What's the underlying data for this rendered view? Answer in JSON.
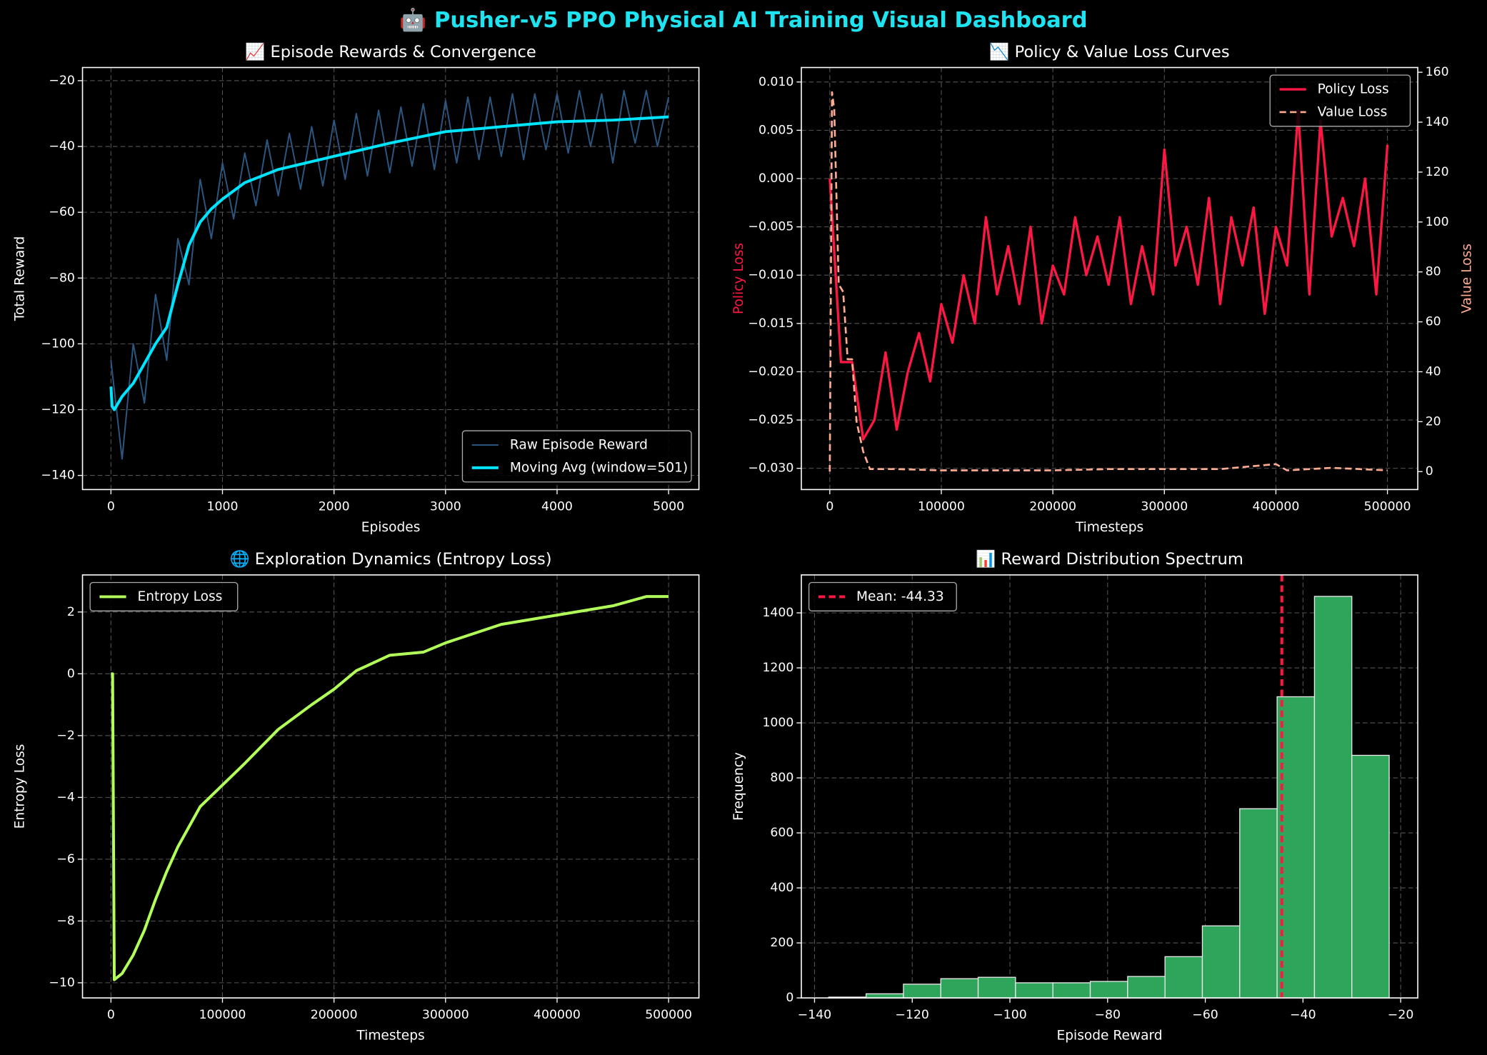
{
  "title": "🤖 Pusher-v5 PPO Physical AI Training Visual Dashboard",
  "chart_data": [
    {
      "type": "line",
      "title": "📈 Episode Rewards & Convergence",
      "xlabel": "Episodes",
      "ylabel": "Total Reward",
      "xlim": [
        -255,
        5272
      ],
      "xticks": [
        0,
        1000,
        2000,
        3000,
        4000,
        5000
      ],
      "ylim": [
        -144.3,
        -16
      ],
      "yticks": [
        {
          "value": -140,
          "label": "−140"
        },
        {
          "value": -120,
          "label": "−120"
        },
        {
          "value": -100,
          "label": "−100"
        },
        {
          "value": -80,
          "label": "−80"
        },
        {
          "value": -60,
          "label": "−60"
        },
        {
          "value": -40,
          "label": "−40"
        },
        {
          "value": -20,
          "label": "−20"
        }
      ],
      "grid": true,
      "legend": "lower right",
      "series": [
        {
          "name": "Raw Episode Reward",
          "color": "#2b5680",
          "linewidth": 1.5,
          "x": [
            0,
            100,
            200,
            300,
            400,
            500,
            600,
            700,
            800,
            900,
            1000,
            1100,
            1200,
            1300,
            1400,
            1500,
            1600,
            1700,
            1800,
            1900,
            2000,
            2100,
            2200,
            2300,
            2400,
            2500,
            2600,
            2700,
            2800,
            2900,
            3000,
            3100,
            3200,
            3300,
            3400,
            3500,
            3600,
            3700,
            3800,
            3900,
            4000,
            4100,
            4200,
            4300,
            4400,
            4500,
            4600,
            4700,
            4800,
            4900,
            5000
          ],
          "values": [
            -105,
            -135,
            -100,
            -118,
            -85,
            -105,
            -68,
            -82,
            -50,
            -68,
            -45,
            -62,
            -42,
            -58,
            -38,
            -55,
            -36,
            -53,
            -34,
            -52,
            -32,
            -50,
            -30,
            -49,
            -29,
            -48,
            -28,
            -46,
            -27,
            -47,
            -26,
            -45,
            -25,
            -44,
            -25,
            -43,
            -24,
            -44,
            -24,
            -41,
            -24,
            -42,
            -23,
            -40,
            -24,
            -45,
            -23,
            -39,
            -23,
            -40,
            -25
          ]
        },
        {
          "name": "Moving Avg (window=501)",
          "color": "#00e5ff",
          "linewidth": 3,
          "x": [
            0,
            10,
            30,
            100,
            200,
            300,
            400,
            500,
            600,
            700,
            800,
            900,
            1000,
            1200,
            1500,
            2000,
            2500,
            3000,
            3500,
            4000,
            4500,
            5000
          ],
          "values": [
            -113,
            -119,
            -120,
            -116,
            -112,
            -106,
            -100,
            -95,
            -82,
            -70,
            -63,
            -59,
            -56,
            -51,
            -47,
            -43,
            -39,
            -35.5,
            -34,
            -32.5,
            -32,
            -31
          ]
        }
      ]
    },
    {
      "type": "line",
      "title": "📉 Policy & Value Loss Curves",
      "xlabel": "Timesteps",
      "ylabel": "Policy Loss",
      "y2label": "Value Loss",
      "ylabel_color": "#ff1744",
      "y2label_color": "#ffab91",
      "xlim": [
        -25500,
        527200
      ],
      "xticks": [
        0,
        100000,
        200000,
        300000,
        400000,
        500000
      ],
      "ylim": [
        -0.0322,
        0.0115
      ],
      "yticks": [
        {
          "value": -0.03,
          "label": "−0.030"
        },
        {
          "value": -0.025,
          "label": "−0.025"
        },
        {
          "value": -0.02,
          "label": "−0.020"
        },
        {
          "value": -0.015,
          "label": "−0.015"
        },
        {
          "value": -0.01,
          "label": "−0.010"
        },
        {
          "value": -0.005,
          "label": "−0.005"
        },
        {
          "value": 0,
          "label": "0.000"
        },
        {
          "value": 0.005,
          "label": "0.005"
        },
        {
          "value": 0.01,
          "label": "0.010"
        }
      ],
      "y2lim": [
        -7.2,
        161.9
      ],
      "y2ticks": [
        0,
        20,
        40,
        60,
        80,
        100,
        120,
        140,
        160
      ],
      "grid": true,
      "legend": "upper right",
      "series": [
        {
          "name": "Policy Loss",
          "color": "#ff1744",
          "linewidth": 2.5,
          "x": [
            0,
            10000,
            20000,
            30000,
            40000,
            50000,
            60000,
            70000,
            80000,
            90000,
            100000,
            110000,
            120000,
            130000,
            140000,
            150000,
            160000,
            170000,
            180000,
            190000,
            200000,
            210000,
            220000,
            230000,
            240000,
            250000,
            260000,
            270000,
            280000,
            290000,
            300000,
            310000,
            320000,
            330000,
            340000,
            350000,
            360000,
            370000,
            380000,
            390000,
            400000,
            410000,
            420000,
            430000,
            440000,
            450000,
            460000,
            470000,
            480000,
            490000,
            500000
          ],
          "values": [
            0,
            -0.019,
            -0.019,
            -0.027,
            -0.025,
            -0.018,
            -0.026,
            -0.02,
            -0.016,
            -0.021,
            -0.013,
            -0.017,
            -0.01,
            -0.015,
            -0.004,
            -0.012,
            -0.007,
            -0.013,
            -0.005,
            -0.015,
            -0.009,
            -0.012,
            -0.004,
            -0.01,
            -0.006,
            -0.011,
            -0.004,
            -0.013,
            -0.007,
            -0.012,
            0.003,
            -0.009,
            -0.005,
            -0.011,
            -0.002,
            -0.013,
            -0.004,
            -0.009,
            -0.003,
            -0.014,
            -0.005,
            -0.009,
            0.007,
            -0.012,
            0.006,
            -0.006,
            -0.002,
            -0.007,
            0,
            -0.012,
            0.0035
          ]
        },
        {
          "name": "Value Loss",
          "color": "#ffab91",
          "linewidth": 2,
          "linestyle": "dashed",
          "axis": "y2",
          "x": [
            0,
            2000,
            4000,
            8000,
            12000,
            16000,
            20000,
            24000,
            30000,
            36000,
            60000,
            100000,
            150000,
            200000,
            250000,
            300000,
            350000,
            400000,
            410000,
            450000,
            500000
          ],
          "values": [
            0,
            152,
            145,
            75,
            72,
            45,
            45,
            20,
            8,
            1,
            1,
            0.5,
            0.5,
            0.5,
            1,
            1,
            1,
            3,
            0.5,
            1.5,
            0.5
          ]
        }
      ]
    },
    {
      "type": "line",
      "title": "🌐 Exploration Dynamics (Entropy Loss)",
      "xlabel": "Timesteps",
      "ylabel": "Entropy Loss",
      "xlim": [
        -25500,
        527200
      ],
      "xticks": [
        0,
        100000,
        200000,
        300000,
        400000,
        500000
      ],
      "ylim": [
        -10.49,
        3.2
      ],
      "yticks": [
        {
          "value": -10,
          "label": "−10"
        },
        {
          "value": -8,
          "label": "−8"
        },
        {
          "value": -6,
          "label": "−6"
        },
        {
          "value": -4,
          "label": "−4"
        },
        {
          "value": -2,
          "label": "−2"
        },
        0,
        2
      ],
      "grid": true,
      "legend": "upper left",
      "series": [
        {
          "name": "Entropy Loss",
          "color": "#b2ff59",
          "linewidth": 3,
          "x": [
            0,
            1500,
            3000,
            10000,
            20000,
            30000,
            40000,
            50000,
            60000,
            80000,
            100000,
            120000,
            150000,
            180000,
            200000,
            220000,
            250000,
            280000,
            300000,
            350000,
            400000,
            450000,
            480000,
            500000
          ],
          "values": [
            0,
            0,
            -9.9,
            -9.7,
            -9.1,
            -8.3,
            -7.3,
            -6.4,
            -5.6,
            -4.3,
            -3.6,
            -2.9,
            -1.8,
            -1.0,
            -0.5,
            0.1,
            0.6,
            0.7,
            1.0,
            1.6,
            1.9,
            2.2,
            2.5,
            2.5
          ]
        }
      ]
    },
    {
      "type": "histogram",
      "title": "📊 Reward Distribution Spectrum",
      "xlabel": "Episode Reward",
      "ylabel": "Frequency",
      "xlim": [
        -142.7,
        -16.5
      ],
      "xticks": [
        {
          "value": -140,
          "label": "−140"
        },
        {
          "value": -120,
          "label": "−120"
        },
        {
          "value": -100,
          "label": "−100"
        },
        {
          "value": -80,
          "label": "−80"
        },
        {
          "value": -60,
          "label": "−60"
        },
        {
          "value": -40,
          "label": "−40"
        },
        {
          "value": -20,
          "label": "−20"
        }
      ],
      "ylim": [
        0,
        1538
      ],
      "yticks": [
        0,
        200,
        400,
        600,
        800,
        1000,
        1200,
        1400
      ],
      "grid": true,
      "legend": "upper left",
      "color": "#2ea55a",
      "edgecolor": "#e8e8e8",
      "bins": [
        -137.1,
        -129.45,
        -121.8,
        -114.15,
        -106.5,
        -98.85,
        -91.2,
        -83.55,
        -75.9,
        -68.25,
        -60.6,
        -52.95,
        -45.3,
        -37.65,
        -30.0,
        -22.35
      ],
      "values": [
        3,
        15,
        50,
        70,
        75,
        55,
        55,
        60,
        78,
        150,
        262,
        688,
        1095,
        1460,
        882
      ],
      "vline": {
        "name": "Mean: -44.33",
        "value": -44.33,
        "color": "#ff1744",
        "linestyle": "dashed"
      }
    }
  ]
}
